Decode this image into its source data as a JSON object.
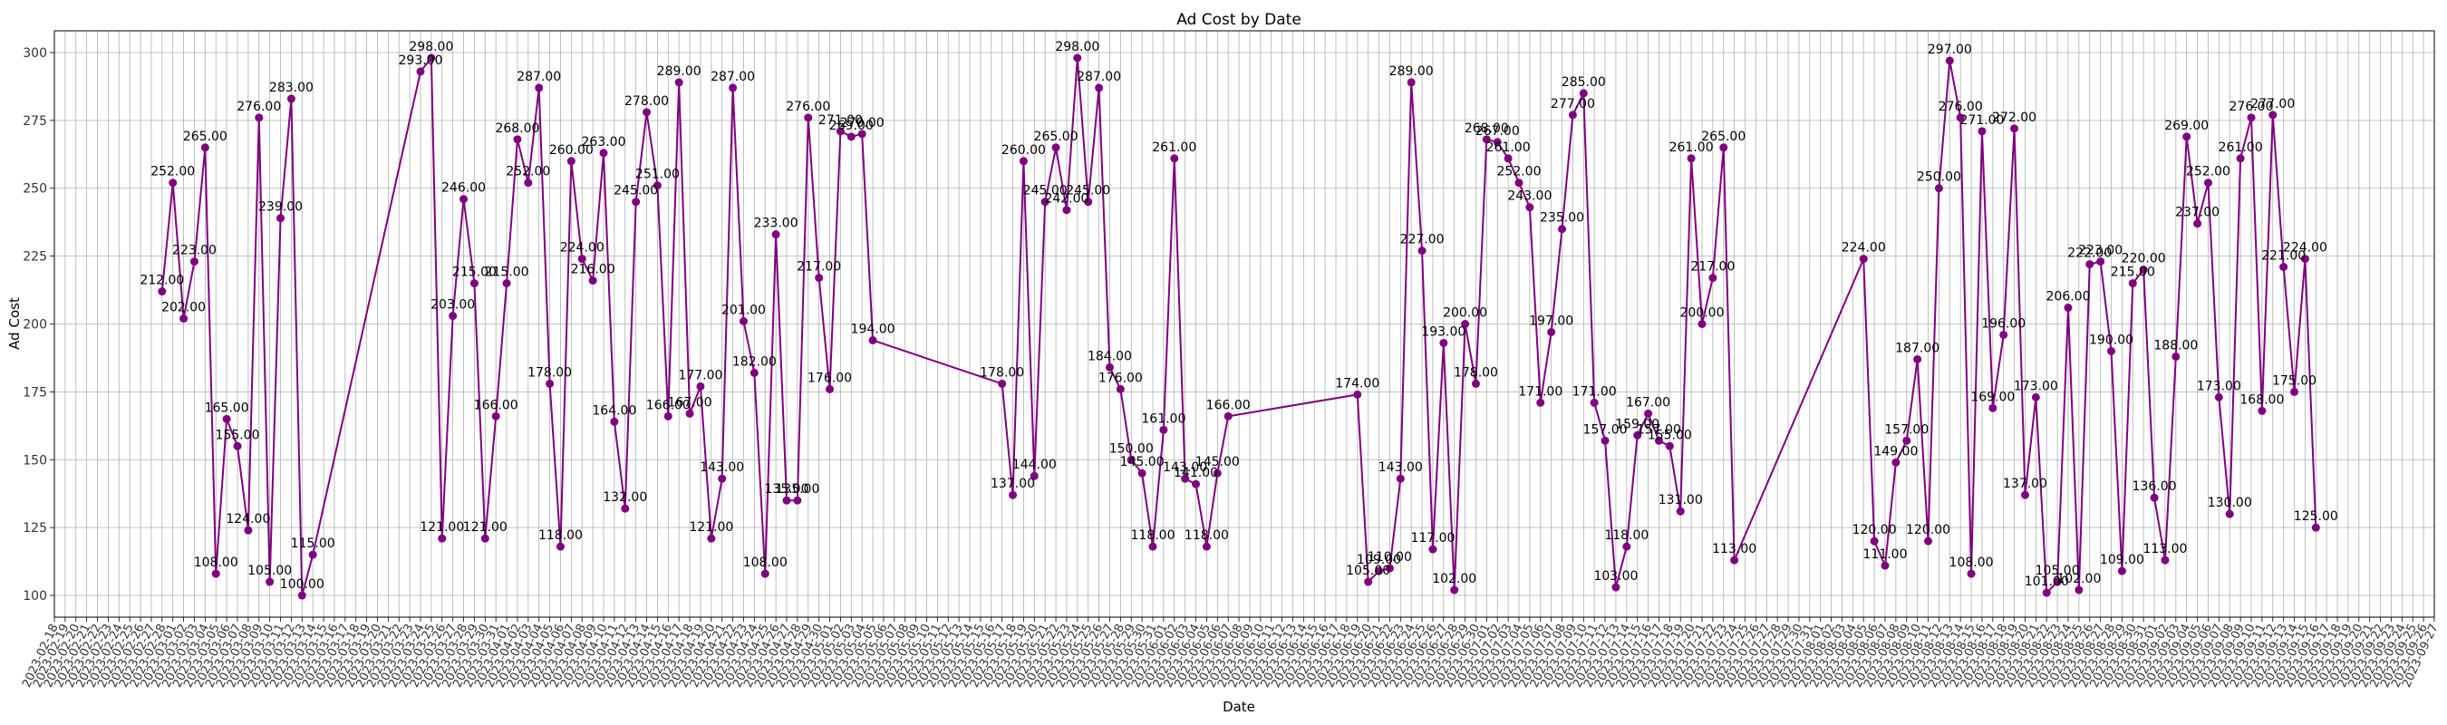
{
  "chart_data": {
    "type": "line",
    "title": "Ad Cost by Date",
    "xlabel": "Date",
    "ylabel": "Ad Cost",
    "ylim": [
      92,
      308
    ],
    "yticks": [
      100,
      125,
      150,
      175,
      200,
      225,
      250,
      275,
      300
    ],
    "xlim": [
      "2023-02-18",
      "2023-09-27"
    ],
    "x_tick_interval_days": 1,
    "grid": true,
    "color": "#800080",
    "marker": "circle",
    "series": [
      {
        "points": [
          [
            "2023-02-28",
            212
          ],
          [
            "2023-03-01",
            252
          ],
          [
            "2023-03-02",
            202
          ],
          [
            "2023-03-03",
            223
          ],
          [
            "2023-03-04",
            265
          ],
          [
            "2023-03-05",
            108
          ],
          [
            "2023-03-06",
            165
          ],
          [
            "2023-03-07",
            155
          ],
          [
            "2023-03-08",
            124
          ],
          [
            "2023-03-09",
            276
          ],
          [
            "2023-03-10",
            105
          ],
          [
            "2023-03-11",
            239
          ],
          [
            "2023-03-12",
            283
          ],
          [
            "2023-03-13",
            100
          ],
          [
            "2023-03-14",
            115
          ],
          [
            "2023-03-24",
            293
          ],
          [
            "2023-03-25",
            298
          ],
          [
            "2023-03-26",
            121
          ],
          [
            "2023-03-27",
            203
          ],
          [
            "2023-03-28",
            246
          ],
          [
            "2023-03-29",
            215
          ],
          [
            "2023-03-30",
            121
          ],
          [
            "2023-03-31",
            166
          ],
          [
            "2023-04-01",
            215
          ],
          [
            "2023-04-02",
            268
          ],
          [
            "2023-04-03",
            252
          ],
          [
            "2023-04-04",
            287
          ],
          [
            "2023-04-05",
            178
          ],
          [
            "2023-04-06",
            118
          ],
          [
            "2023-04-07",
            260
          ],
          [
            "2023-04-08",
            224
          ],
          [
            "2023-04-09",
            216
          ],
          [
            "2023-04-10",
            263
          ],
          [
            "2023-04-11",
            164
          ],
          [
            "2023-04-12",
            132
          ],
          [
            "2023-04-13",
            245
          ],
          [
            "2023-04-14",
            278
          ],
          [
            "2023-04-15",
            251
          ],
          [
            "2023-04-16",
            166
          ],
          [
            "2023-04-17",
            289
          ],
          [
            "2023-04-18",
            167
          ],
          [
            "2023-04-19",
            177
          ],
          [
            "2023-04-20",
            121
          ],
          [
            "2023-04-21",
            143
          ],
          [
            "2023-04-22",
            287
          ],
          [
            "2023-04-23",
            201
          ],
          [
            "2023-04-24",
            182
          ],
          [
            "2023-04-25",
            108
          ],
          [
            "2023-04-26",
            233
          ],
          [
            "2023-04-27",
            135
          ],
          [
            "2023-04-28",
            135
          ],
          [
            "2023-04-29",
            276
          ],
          [
            "2023-04-30",
            217
          ],
          [
            "2023-05-01",
            176
          ],
          [
            "2023-05-02",
            271
          ],
          [
            "2023-05-03",
            269
          ],
          [
            "2023-05-04",
            270
          ],
          [
            "2023-05-05",
            194
          ],
          [
            "2023-05-17",
            178
          ],
          [
            "2023-05-18",
            137
          ],
          [
            "2023-05-19",
            260
          ],
          [
            "2023-05-20",
            144
          ],
          [
            "2023-05-21",
            245
          ],
          [
            "2023-05-22",
            265
          ],
          [
            "2023-05-23",
            242
          ],
          [
            "2023-05-24",
            298
          ],
          [
            "2023-05-25",
            245
          ],
          [
            "2023-05-26",
            287
          ],
          [
            "2023-05-27",
            184
          ],
          [
            "2023-05-28",
            176
          ],
          [
            "2023-05-29",
            150
          ],
          [
            "2023-05-30",
            145
          ],
          [
            "2023-05-31",
            118
          ],
          [
            "2023-06-01",
            161
          ],
          [
            "2023-06-02",
            261
          ],
          [
            "2023-06-03",
            143
          ],
          [
            "2023-06-04",
            141
          ],
          [
            "2023-06-05",
            118
          ],
          [
            "2023-06-06",
            145
          ],
          [
            "2023-06-07",
            166
          ],
          [
            "2023-06-19",
            174
          ],
          [
            "2023-06-20",
            105
          ],
          [
            "2023-06-21",
            109
          ],
          [
            "2023-06-22",
            110
          ],
          [
            "2023-06-23",
            143
          ],
          [
            "2023-06-24",
            289
          ],
          [
            "2023-06-25",
            227
          ],
          [
            "2023-06-26",
            117
          ],
          [
            "2023-06-27",
            193
          ],
          [
            "2023-06-28",
            102
          ],
          [
            "2023-06-29",
            200
          ],
          [
            "2023-06-30",
            178
          ],
          [
            "2023-07-01",
            268
          ],
          [
            "2023-07-02",
            267
          ],
          [
            "2023-07-03",
            261
          ],
          [
            "2023-07-04",
            252
          ],
          [
            "2023-07-05",
            243
          ],
          [
            "2023-07-06",
            171
          ],
          [
            "2023-07-07",
            197
          ],
          [
            "2023-07-08",
            235
          ],
          [
            "2023-07-09",
            277
          ],
          [
            "2023-07-10",
            285
          ],
          [
            "2023-07-11",
            171
          ],
          [
            "2023-07-12",
            157
          ],
          [
            "2023-07-13",
            103
          ],
          [
            "2023-07-14",
            118
          ],
          [
            "2023-07-15",
            159
          ],
          [
            "2023-07-16",
            167
          ],
          [
            "2023-07-17",
            157
          ],
          [
            "2023-07-18",
            155
          ],
          [
            "2023-07-19",
            131
          ],
          [
            "2023-07-20",
            261
          ],
          [
            "2023-07-21",
            200
          ],
          [
            "2023-07-22",
            217
          ],
          [
            "2023-07-23",
            265
          ],
          [
            "2023-07-24",
            113
          ],
          [
            "2023-08-05",
            224
          ],
          [
            "2023-08-06",
            120
          ],
          [
            "2023-08-07",
            111
          ],
          [
            "2023-08-08",
            149
          ],
          [
            "2023-08-09",
            157
          ],
          [
            "2023-08-10",
            187
          ],
          [
            "2023-08-11",
            120
          ],
          [
            "2023-08-12",
            250
          ],
          [
            "2023-08-13",
            297
          ],
          [
            "2023-08-14",
            276
          ],
          [
            "2023-08-15",
            108
          ],
          [
            "2023-08-16",
            271
          ],
          [
            "2023-08-17",
            169
          ],
          [
            "2023-08-18",
            196
          ],
          [
            "2023-08-19",
            272
          ],
          [
            "2023-08-20",
            137
          ],
          [
            "2023-08-21",
            173
          ],
          [
            "2023-08-22",
            101
          ],
          [
            "2023-08-23",
            105
          ],
          [
            "2023-08-24",
            206
          ],
          [
            "2023-08-25",
            102
          ],
          [
            "2023-08-26",
            222
          ],
          [
            "2023-08-27",
            223
          ],
          [
            "2023-08-28",
            190
          ],
          [
            "2023-08-29",
            109
          ],
          [
            "2023-08-30",
            215
          ],
          [
            "2023-08-31",
            220
          ],
          [
            "2023-09-01",
            136
          ],
          [
            "2023-09-02",
            113
          ],
          [
            "2023-09-03",
            188
          ],
          [
            "2023-09-04",
            269
          ],
          [
            "2023-09-05",
            237
          ],
          [
            "2023-09-06",
            252
          ],
          [
            "2023-09-07",
            173
          ],
          [
            "2023-09-08",
            130
          ],
          [
            "2023-09-09",
            261
          ],
          [
            "2023-09-10",
            276
          ],
          [
            "2023-09-11",
            168
          ],
          [
            "2023-09-12",
            277
          ],
          [
            "2023-09-13",
            221
          ],
          [
            "2023-09-14",
            175
          ],
          [
            "2023-09-15",
            224
          ],
          [
            "2023-09-16",
            125
          ]
        ]
      }
    ]
  }
}
